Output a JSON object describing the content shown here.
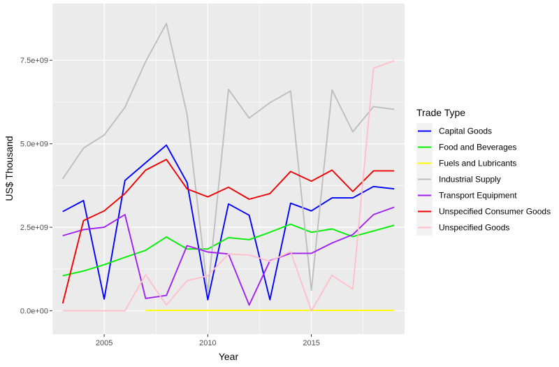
{
  "chart_data": {
    "type": "line",
    "xlabel": "Year",
    "ylabel": "US$ Thousand",
    "xlim": [
      2002.5,
      2019.5
    ],
    "ylim": [
      -700000000,
      9200000000
    ],
    "x_ticks": [
      2005,
      2010,
      2015
    ],
    "y_ticks": [
      0,
      2500000000,
      5000000000,
      7500000000
    ],
    "x_tick_labels": [
      "2005",
      "2010",
      "2015"
    ],
    "y_tick_labels": [
      "0.0e+00",
      "2.5e+09",
      "5.0e+09",
      "7.5e+09"
    ],
    "grid": true,
    "legend": {
      "title": "Trade Type",
      "position": "right"
    },
    "x": [
      2003,
      2004,
      2005,
      2006,
      2007,
      2008,
      2009,
      2010,
      2011,
      2012,
      2013,
      2014,
      2015,
      2016,
      2017,
      2018,
      2019
    ],
    "series": [
      {
        "name": "Capital Goods",
        "color": "#0000ff",
        "values": [
          2970000000,
          3300000000,
          350000000,
          3900000000,
          4430000000,
          4960000000,
          3840000000,
          330000000,
          3200000000,
          2860000000,
          330000000,
          3220000000,
          2990000000,
          3380000000,
          3380000000,
          3720000000,
          3650000000
        ]
      },
      {
        "name": "Food and Beverages",
        "color": "#00ee00",
        "values": [
          1050000000,
          1190000000,
          1380000000,
          1600000000,
          1810000000,
          2210000000,
          1850000000,
          1850000000,
          2190000000,
          2130000000,
          2350000000,
          2590000000,
          2350000000,
          2450000000,
          2220000000,
          2390000000,
          2560000000
        ]
      },
      {
        "name": "Fuels and Lubricants",
        "color": "#ffff00",
        "values": [
          null,
          null,
          null,
          null,
          10000000,
          10000000,
          10000000,
          10000000,
          10000000,
          10000000,
          10000000,
          10000000,
          10000000,
          10000000,
          10000000,
          10000000,
          10000000
        ]
      },
      {
        "name": "Industrial Supply",
        "color": "#bebebe",
        "values": [
          3950000000,
          4870000000,
          5260000000,
          6090000000,
          7460000000,
          8600000000,
          5880000000,
          550000000,
          6630000000,
          5770000000,
          6230000000,
          6580000000,
          620000000,
          6610000000,
          5360000000,
          6110000000,
          6030000000
        ]
      },
      {
        "name": "Transport Equipment",
        "color": "#a020f0",
        "values": [
          2250000000,
          2430000000,
          2500000000,
          2880000000,
          370000000,
          460000000,
          1950000000,
          1760000000,
          1700000000,
          170000000,
          1500000000,
          1720000000,
          1720000000,
          2030000000,
          2280000000,
          2880000000,
          3100000000
        ]
      },
      {
        "name": "Unspecified Consumer Goods",
        "color": "#ee0000",
        "values": [
          220000000,
          2700000000,
          2990000000,
          3510000000,
          4210000000,
          4530000000,
          3650000000,
          3410000000,
          3700000000,
          3340000000,
          3510000000,
          4170000000,
          3880000000,
          4210000000,
          3570000000,
          4190000000,
          4190000000
        ]
      },
      {
        "name": "Unspecified Goods",
        "color": "#ffc0cb",
        "values": [
          0,
          0,
          0,
          0,
          1080000000,
          170000000,
          900000000,
          1050000000,
          1700000000,
          1670000000,
          1480000000,
          1770000000,
          0,
          1060000000,
          650000000,
          7260000000,
          7490000000
        ]
      }
    ]
  }
}
